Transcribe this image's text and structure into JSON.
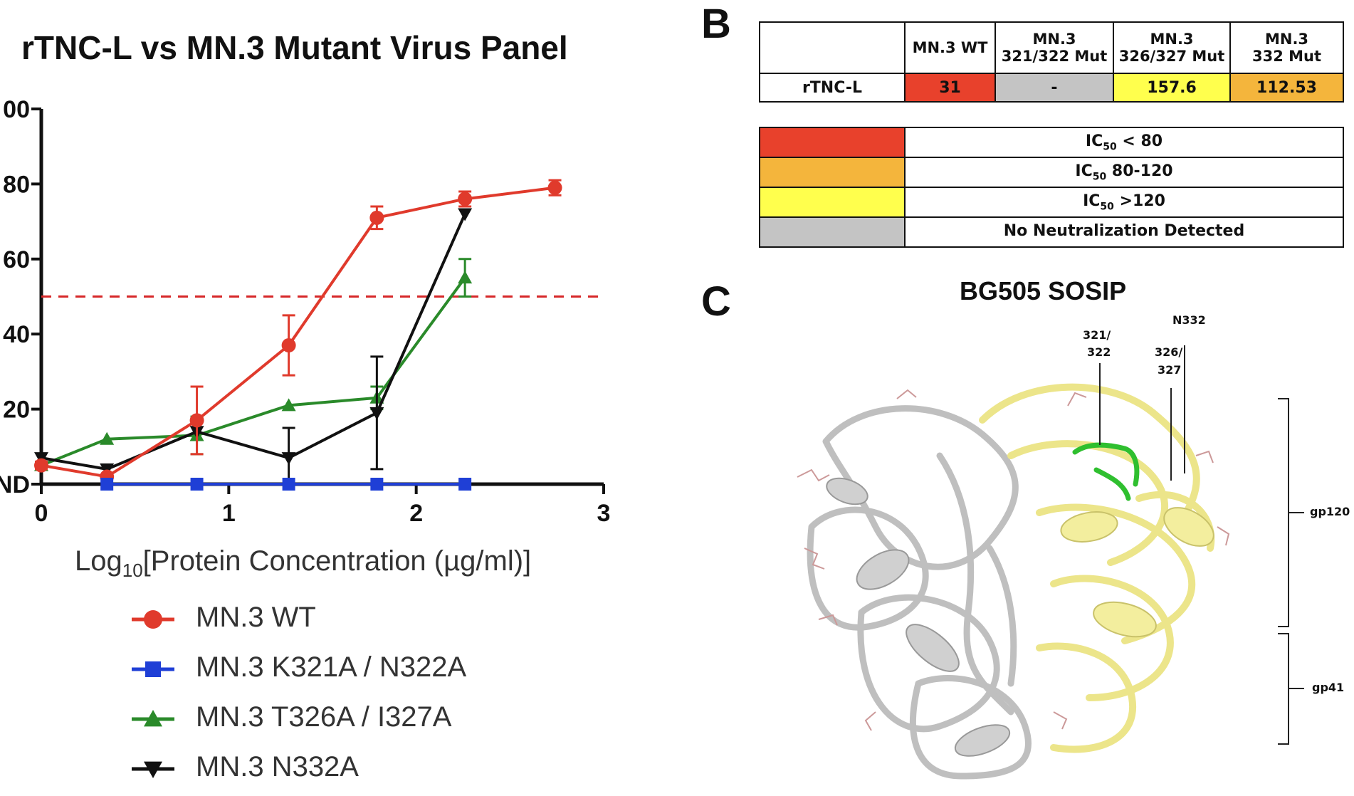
{
  "panel_b": {
    "letter": "B",
    "col_headers": [
      [
        "MN.3 WT",
        ""
      ],
      [
        "MN.3",
        "321/322 Mut"
      ],
      [
        "MN.3",
        "326/327 Mut"
      ],
      [
        "MN.3",
        "332 Mut"
      ]
    ],
    "row_label": "rTNC-L",
    "values": [
      "31",
      "-",
      "157.6",
      "112.53"
    ],
    "value_colors": [
      "#e8412c",
      "#c4c4c4",
      "#ffff4d",
      "#f4b53c"
    ],
    "legend": [
      {
        "color": "#e8412c",
        "prefix": "IC",
        "sub": "50",
        "suffix": " < 80"
      },
      {
        "color": "#f4b53c",
        "prefix": "IC",
        "sub": "50",
        "suffix": " 80-120"
      },
      {
        "color": "#ffff4d",
        "prefix": "IC",
        "sub": "50",
        "suffix": " >120"
      },
      {
        "color": "#c4c4c4",
        "prefix": "",
        "sub": "",
        "suffix": "No Neutralization Detected"
      }
    ]
  },
  "panel_c": {
    "letter": "C",
    "title": "BG505 SOSIP",
    "labels": {
      "site_321_a": "321/",
      "site_321_b": "322",
      "site_326_a": "326/",
      "site_326_b": "327",
      "site_332": "N332",
      "gp120": "gp120",
      "gp41": "gp41"
    }
  },
  "chart_data": {
    "type": "line",
    "title": "rTNC-L vs MN.3 Mutant Virus Panel",
    "xlabel_prefix": "Log",
    "xlabel_sub": "10",
    "xlabel_rest": "[Protein Concentration (µg/ml)]",
    "ylabel": "",
    "xlim": [
      0,
      3
    ],
    "ylim": [
      0,
      100
    ],
    "x_ticks": [
      "0",
      "1",
      "2",
      "3"
    ],
    "y_ticks": [
      "ND",
      "20",
      "40",
      "60",
      "80",
      "00"
    ],
    "threshold": 50,
    "threshold_color": "#d62728",
    "series": [
      {
        "name": "MN.3 WT",
        "color": "#e03a2c",
        "marker": "circle",
        "x": [
          0.0,
          0.35,
          0.83,
          1.32,
          1.79,
          2.26,
          2.74
        ],
        "y": [
          5,
          2,
          17,
          37,
          71,
          76,
          79
        ],
        "err": [
          1,
          0,
          9,
          8,
          3,
          2,
          2
        ]
      },
      {
        "name": "MN.3 K321A / N322A",
        "color": "#1f3fd6",
        "marker": "square",
        "x": [
          0.35,
          0.83,
          1.32,
          1.79,
          2.26
        ],
        "y": [
          0,
          0,
          0,
          0,
          0
        ],
        "err": [
          0,
          0,
          0,
          0,
          0
        ]
      },
      {
        "name": "MN.3 T326A / I327A",
        "color": "#2a8a2a",
        "marker": "triangle-up",
        "x": [
          0.0,
          0.35,
          0.83,
          1.32,
          1.79,
          2.26
        ],
        "y": [
          5,
          12,
          13,
          21,
          23,
          55
        ],
        "err": [
          0,
          0,
          5,
          0,
          3,
          5
        ]
      },
      {
        "name": "MN.3 N332A",
        "color": "#111111",
        "marker": "triangle-down",
        "x": [
          0.0,
          0.35,
          0.83,
          1.32,
          1.79,
          2.26
        ],
        "y": [
          7,
          4,
          14,
          7,
          19,
          72
        ],
        "err": [
          0,
          0,
          0,
          8,
          15,
          0
        ]
      }
    ]
  }
}
